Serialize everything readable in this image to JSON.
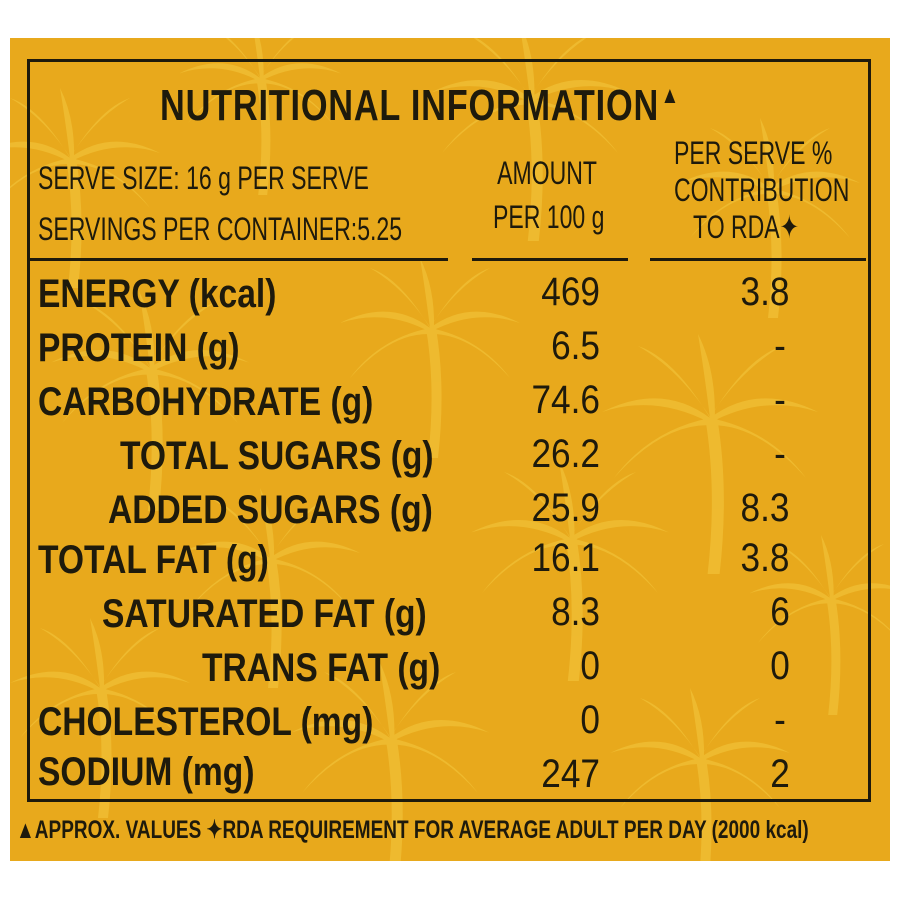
{
  "colors": {
    "background": "#e8a91c",
    "ink": "#1e1a0c",
    "palm": "#f4c93f"
  },
  "title": "NUTRITIONAL INFORMATION",
  "title_mark": "▲",
  "serve": {
    "line1": "SERVE SIZE: 16 g  PER SERVE",
    "line2": "SERVINGS PER CONTAINER:5.25"
  },
  "columns": {
    "amount": [
      "AMOUNT",
      "PER 100 g"
    ],
    "rda": [
      "PER SERVE %",
      "CONTRIBUTION",
      "TO RDA✦"
    ]
  },
  "rows": [
    {
      "label": "ENERGY (kcal)",
      "amount": "469",
      "rda": "3.8"
    },
    {
      "label": "PROTEIN (g)",
      "amount": "6.5",
      "rda": "-"
    },
    {
      "label": "CARBOHYDRATE (g)",
      "amount": "74.6",
      "rda": "-"
    },
    {
      "label": "TOTAL SUGARS (g)",
      "amount": "26.2",
      "rda": "-"
    },
    {
      "label": "ADDED SUGARS (g)",
      "amount": "25.9",
      "rda": "8.3"
    },
    {
      "label": "TOTAL FAT (g)",
      "amount": "16.1",
      "rda": "3.8"
    },
    {
      "label": "SATURATED FAT (g)",
      "amount": "8.3",
      "rda": "6"
    },
    {
      "label": "TRANS FAT (g)",
      "amount": "0",
      "rda": "0"
    },
    {
      "label": "CHOLESTEROL (mg)",
      "amount": "0",
      "rda": "-"
    },
    {
      "label": "SODIUM (mg)",
      "amount": "247",
      "rda": "2"
    }
  ],
  "footnote": "▲APPROX. VALUES ✦RDA REQUIREMENT FOR AVERAGE ADULT PER DAY (2000 kcal)"
}
